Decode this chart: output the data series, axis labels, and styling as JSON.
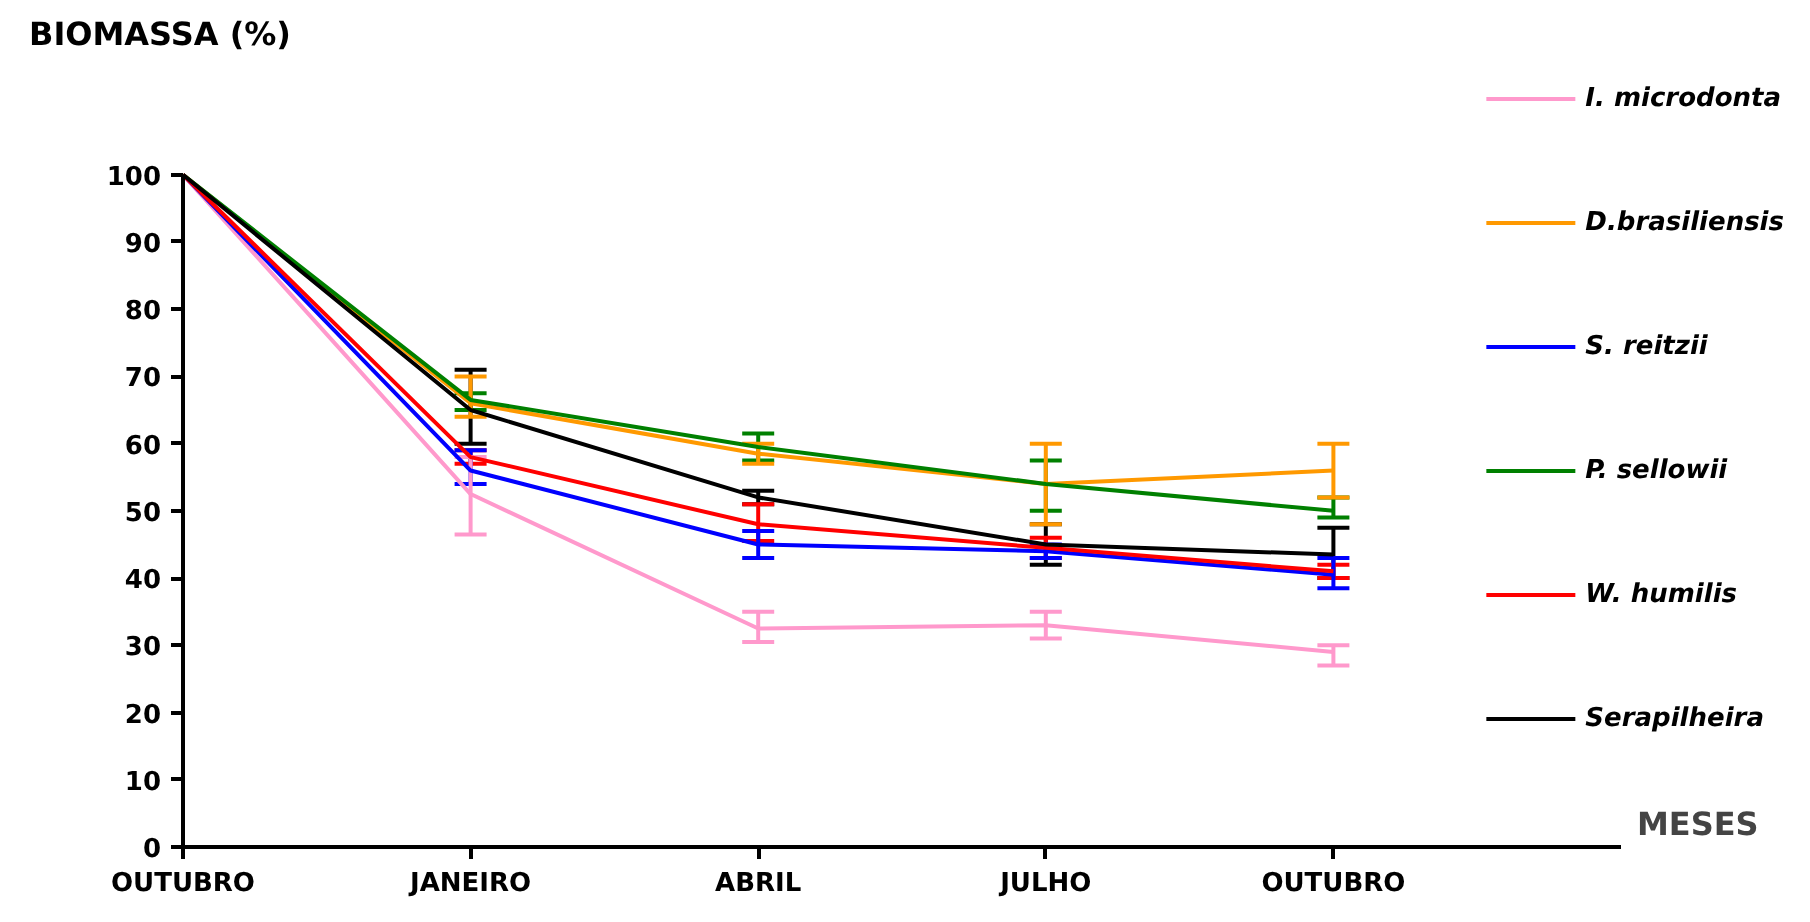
{
  "chart_data": {
    "type": "line",
    "ylabel": "BIOMASSA  (%)",
    "xlabel": "MESES",
    "categories": [
      "OUTUBRO",
      "JANEIRO",
      "ABRIL",
      "JULHO",
      "OUTUBRO"
    ],
    "ylim": [
      0,
      100
    ],
    "yticks": [
      0,
      10,
      20,
      30,
      40,
      50,
      60,
      70,
      80,
      90,
      100
    ],
    "grid": false,
    "legend": "right",
    "series": [
      {
        "name": "I. microdonta",
        "color": "#ff99cc",
        "values": [
          100,
          52.5,
          32.5,
          33,
          29
        ],
        "errors": [
          null,
          [
            46.5,
            58
          ],
          [
            30.5,
            35
          ],
          [
            31,
            35
          ],
          [
            27,
            30
          ]
        ]
      },
      {
        "name": "D.brasiliensis",
        "color": "#ff9900",
        "values": [
          100,
          66,
          58.5,
          54,
          56
        ],
        "errors": [
          null,
          [
            64,
            70
          ],
          [
            57,
            60
          ],
          [
            48,
            60
          ],
          [
            52,
            60
          ]
        ]
      },
      {
        "name": "S. reitzii",
        "color": "#0000ff",
        "values": [
          100,
          56,
          45,
          44,
          40.5
        ],
        "errors": [
          null,
          [
            54,
            59
          ],
          [
            43,
            47
          ],
          [
            43,
            45
          ],
          [
            38.5,
            43
          ]
        ]
      },
      {
        "name": "P. sellowii",
        "color": "#008000",
        "values": [
          100,
          66.5,
          59.5,
          54,
          50
        ],
        "errors": [
          null,
          [
            65,
            67.5
          ],
          [
            57.5,
            61.5
          ],
          [
            50,
            57.5
          ],
          [
            49,
            52
          ]
        ]
      },
      {
        "name": "W. humilis",
        "color": "#ff0000",
        "values": [
          100,
          58,
          48,
          44.5,
          41
        ],
        "errors": [
          null,
          [
            57,
            59
          ],
          [
            45.5,
            51
          ],
          [
            43,
            46
          ],
          [
            40,
            42
          ]
        ]
      },
      {
        "name": "Serapilheira",
        "color": "#000000",
        "values": [
          100,
          65,
          52,
          45,
          43.5
        ],
        "errors": [
          null,
          [
            60,
            71
          ],
          [
            51,
            53
          ],
          [
            42,
            48
          ],
          [
            40,
            47.5
          ]
        ]
      }
    ]
  }
}
